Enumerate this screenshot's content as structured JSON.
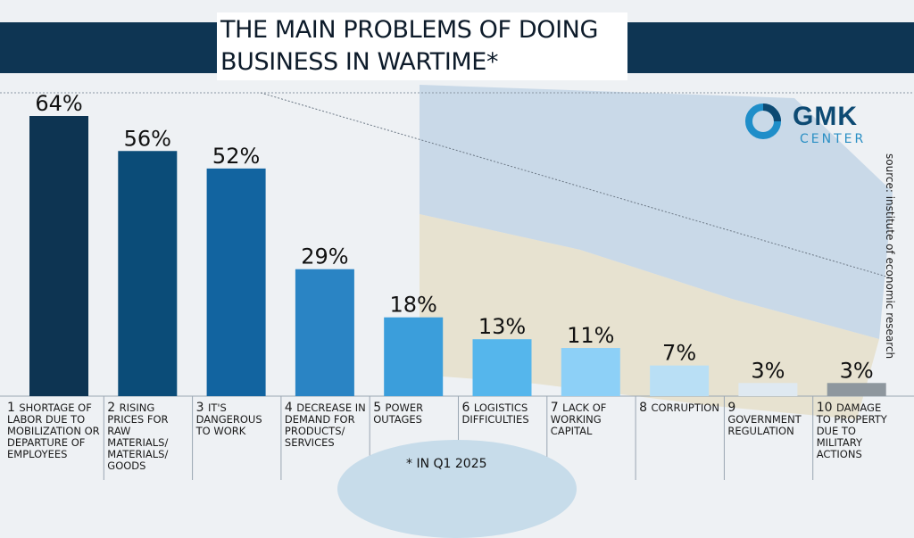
{
  "title": {
    "line1": "THE MAIN PROBLEMS OF DOING",
    "line2": "BUSINESS IN WARTIME*"
  },
  "logo": {
    "name": "GMK",
    "sub": "CENTER",
    "icon": "gmk-ring-logo"
  },
  "source": "source: institute of economic research",
  "footnote": "* IN Q1 2025",
  "colors": {
    "band": "#0e3553",
    "bars": [
      "#0d3452",
      "#0b4c78",
      "#1264a0",
      "#2a84c4",
      "#3b9edb",
      "#55b6ec",
      "#8dd0f7",
      "#b9dff5",
      "#dfe9f1",
      "#8e979e"
    ]
  },
  "chart_data": {
    "type": "bar",
    "title": "THE MAIN PROBLEMS OF DOING BUSINESS IN WARTIME*",
    "categories": [
      {
        "num": "1",
        "text": "SHORTAGE OF LABOR DUE TO MOBILIZATION OR DEPARTURE OF EMPLOYEES"
      },
      {
        "num": "2",
        "text": "RISING PRICES FOR RAW MATERIALS/ MATERIALS/ GOODS"
      },
      {
        "num": "3",
        "text": "IT'S DANGEROUS TO WORK"
      },
      {
        "num": "4",
        "text": "DECREASE IN DEMAND FOR PRODUCTS/ SERVICES"
      },
      {
        "num": "5",
        "text": "POWER OUTAGES"
      },
      {
        "num": "6",
        "text": "LOGISTICS DIFFICULTIES"
      },
      {
        "num": "7",
        "text": "LACK OF WORKING CAPITAL"
      },
      {
        "num": "8",
        "text": "CORRUPTION"
      },
      {
        "num": "9",
        "text": "GOVERNMENT REGULATION"
      },
      {
        "num": "10",
        "text": "DAMAGE TO PROPERTY DUE TO MILITARY ACTIONS"
      }
    ],
    "values": [
      64,
      56,
      52,
      29,
      18,
      13,
      11,
      7,
      3,
      3
    ],
    "value_labels": [
      "64%",
      "56%",
      "52%",
      "29%",
      "18%",
      "13%",
      "11%",
      "7%",
      "3%",
      "3%"
    ],
    "unit": "%",
    "grid": false
  }
}
